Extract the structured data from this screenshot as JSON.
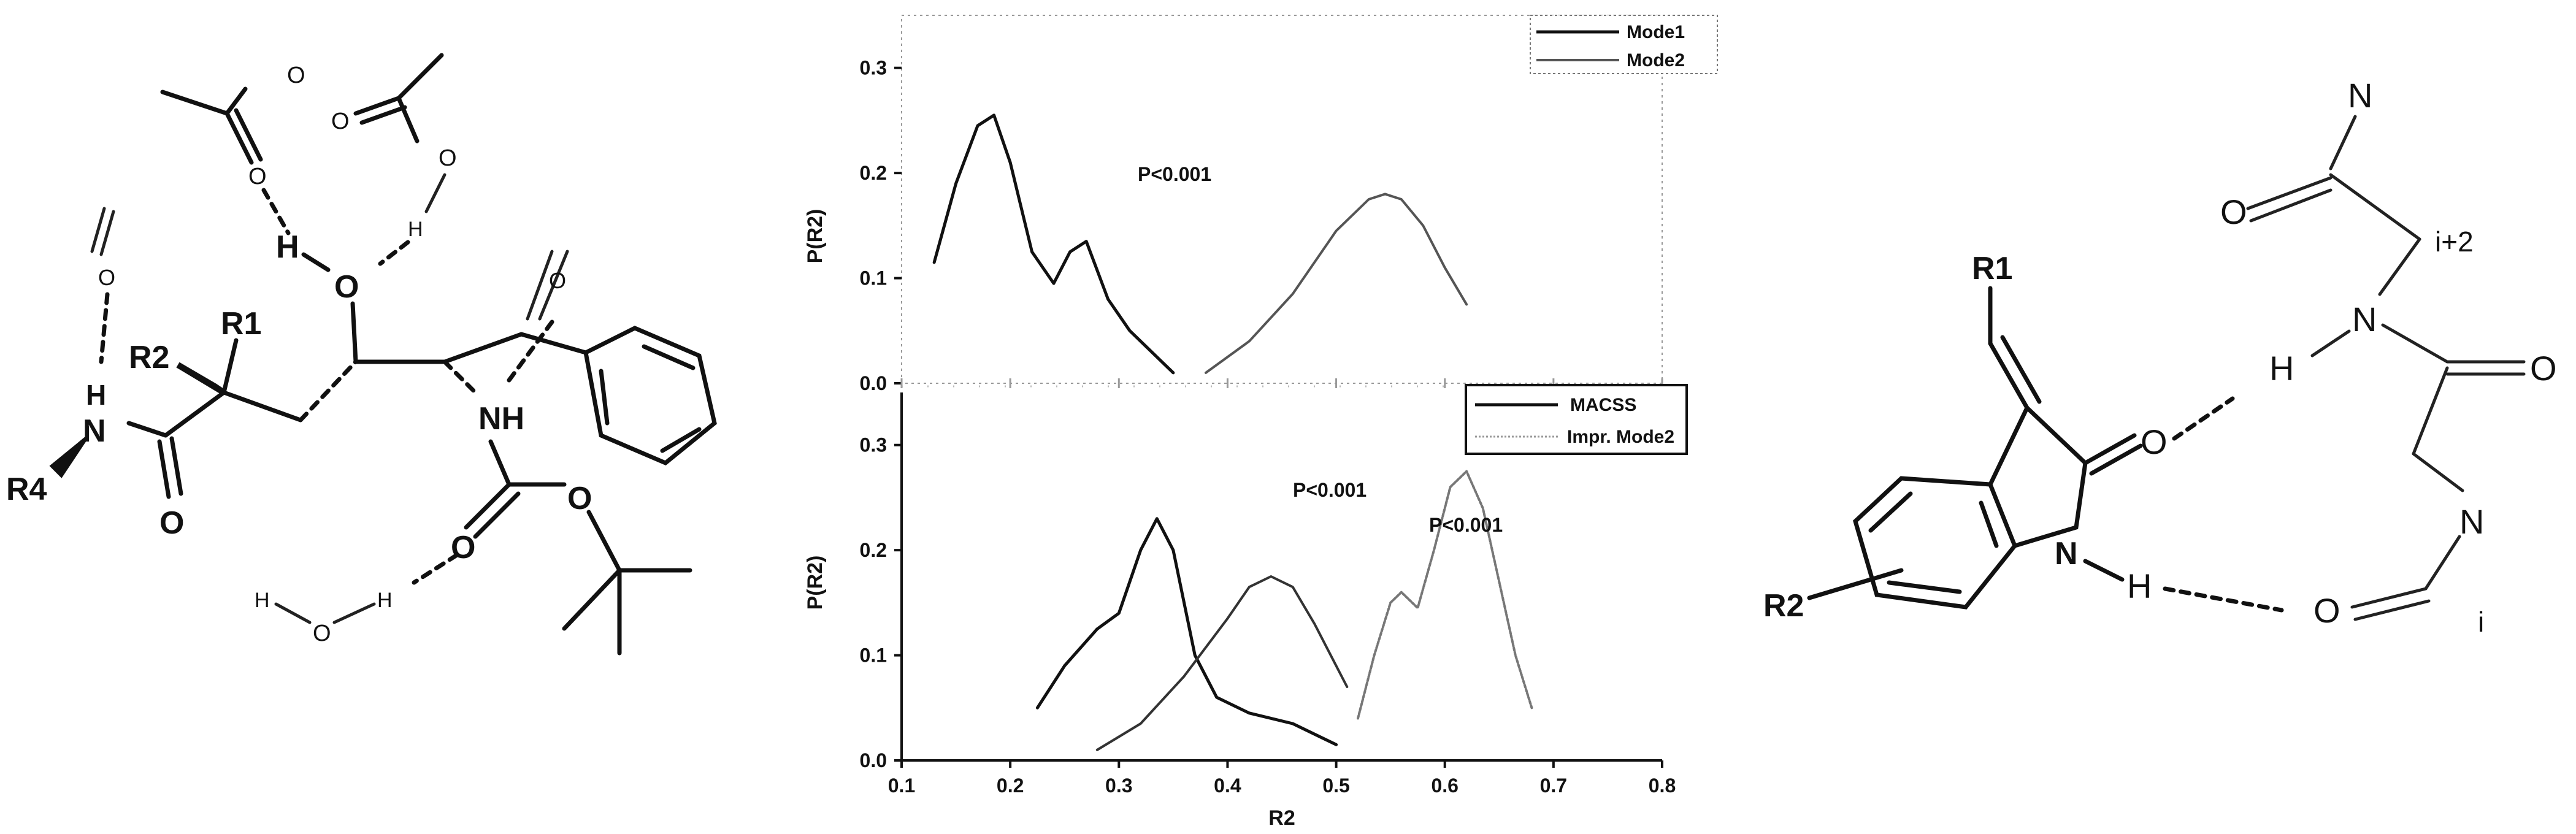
{
  "left_structure": {
    "labels": {
      "r1": "R1",
      "r2": "R2",
      "r4": "R4",
      "n_amide": "N",
      "h_amide": "H",
      "o_amide": "O",
      "o_water_top": "O",
      "o_acid1": "O",
      "o_acid1b": "O",
      "o_acid2": "O",
      "o_acid2b": "O",
      "h_acid2": "H",
      "h_hydroxyl": "H",
      "o_hydroxyl": "O",
      "o_ketone": "O",
      "nh": "NH",
      "o_carbamate": "O",
      "o_ester": "O",
      "h_water1": "H",
      "o_water": "O",
      "h_water2": "H"
    }
  },
  "right_structure": {
    "labels": {
      "r1": "R1",
      "r2": "R2",
      "o_lactam": "O",
      "n_lactam": "N",
      "h_lactam": "H",
      "n_top": "N",
      "o_top": "O",
      "i_plus_2": "i+2",
      "n_mid": "N",
      "h_mid": "H",
      "o_right": "O",
      "n_low": "N",
      "o_low": "O",
      "i_label": "i"
    }
  },
  "chart_data": [
    {
      "type": "line",
      "ylabel": "P(R2)",
      "xlim": [
        0.1,
        0.8
      ],
      "ylim": [
        0.0,
        0.35
      ],
      "yticks": [
        "0.0",
        "0.1",
        "0.2",
        "0.3"
      ],
      "legend_position": "top-right",
      "annotations": [
        "P<0.001"
      ],
      "series": [
        {
          "name": "Mode1",
          "color": "#111111",
          "x": [
            0.13,
            0.15,
            0.17,
            0.185,
            0.2,
            0.22,
            0.24,
            0.255,
            0.27,
            0.29,
            0.31,
            0.35
          ],
          "y": [
            0.115,
            0.19,
            0.245,
            0.255,
            0.21,
            0.125,
            0.095,
            0.125,
            0.135,
            0.08,
            0.05,
            0.01
          ]
        },
        {
          "name": "Mode2",
          "color": "#555555",
          "x": [
            0.38,
            0.42,
            0.46,
            0.5,
            0.53,
            0.545,
            0.56,
            0.58,
            0.6,
            0.62
          ],
          "y": [
            0.01,
            0.04,
            0.085,
            0.145,
            0.175,
            0.18,
            0.175,
            0.15,
            0.11,
            0.075
          ]
        }
      ]
    },
    {
      "type": "line",
      "xlabel": "R2",
      "ylabel": "P(R2)",
      "xlim": [
        0.1,
        0.8
      ],
      "ylim": [
        0.0,
        0.35
      ],
      "xticks": [
        "0.1",
        "0.2",
        "0.3",
        "0.4",
        "0.5",
        "0.6",
        "0.7",
        "0.8"
      ],
      "yticks": [
        "0.0",
        "0.1",
        "0.2",
        "0.3"
      ],
      "legend_position": "top-right",
      "annotations": [
        "P<0.001",
        "P<0.001"
      ],
      "series": [
        {
          "name": "MACSS",
          "color": "#111111",
          "x": [
            0.225,
            0.25,
            0.28,
            0.3,
            0.32,
            0.335,
            0.35,
            0.37,
            0.39,
            0.42,
            0.46,
            0.5
          ],
          "y": [
            0.05,
            0.09,
            0.125,
            0.14,
            0.2,
            0.23,
            0.2,
            0.1,
            0.06,
            0.045,
            0.035,
            0.015
          ]
        },
        {
          "name": "",
          "color": "#333333",
          "x": [
            0.28,
            0.32,
            0.36,
            0.4,
            0.42,
            0.44,
            0.46,
            0.48,
            0.51
          ],
          "y": [
            0.01,
            0.035,
            0.08,
            0.135,
            0.165,
            0.175,
            0.165,
            0.13,
            0.07
          ]
        },
        {
          "name": "Impr. Mode2",
          "color": "#777777",
          "x": [
            0.52,
            0.535,
            0.55,
            0.56,
            0.575,
            0.59,
            0.605,
            0.62,
            0.635,
            0.65,
            0.665,
            0.68
          ],
          "y": [
            0.04,
            0.1,
            0.15,
            0.16,
            0.145,
            0.2,
            0.26,
            0.275,
            0.24,
            0.17,
            0.1,
            0.05
          ]
        }
      ]
    }
  ]
}
